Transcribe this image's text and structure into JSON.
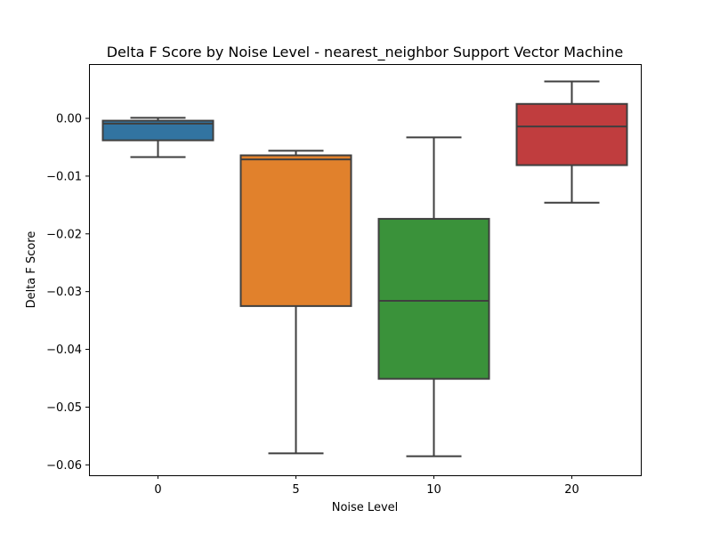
{
  "chart_data": {
    "type": "box",
    "title": "Delta F Score by Noise Level - nearest_neighbor Support Vector Machine",
    "xlabel": "Noise Level",
    "ylabel": "Delta F Score",
    "categories": [
      "0",
      "5",
      "10",
      "20"
    ],
    "colors": [
      "#3274a1",
      "#e1812c",
      "#3a923a",
      "#c03d3e"
    ],
    "boxes": [
      {
        "category": "0",
        "whisker_low": -0.0067,
        "q1": -0.0038,
        "median": -0.0009,
        "q3": -0.0004,
        "whisker_high": 0.0001
      },
      {
        "category": "5",
        "whisker_low": -0.058,
        "q1": -0.0325,
        "median": -0.0071,
        "q3": -0.0064,
        "whisker_high": -0.0056
      },
      {
        "category": "10",
        "whisker_low": -0.0585,
        "q1": -0.0451,
        "median": -0.0316,
        "q3": -0.0174,
        "whisker_high": -0.0033
      },
      {
        "category": "20",
        "whisker_low": -0.0146,
        "q1": -0.0081,
        "median": -0.0014,
        "q3": 0.0025,
        "whisker_high": 0.0064
      }
    ],
    "ylim": [
      -0.0618,
      0.0094
    ],
    "yticks": [
      {
        "value": 0.0,
        "label": "0.00"
      },
      {
        "value": -0.01,
        "label": "−0.01"
      },
      {
        "value": -0.02,
        "label": "−0.02"
      },
      {
        "value": -0.03,
        "label": "−0.03"
      },
      {
        "value": -0.04,
        "label": "−0.04"
      },
      {
        "value": -0.05,
        "label": "−0.05"
      },
      {
        "value": -0.06,
        "label": "−0.06"
      }
    ],
    "grid": false,
    "legend": "none"
  }
}
